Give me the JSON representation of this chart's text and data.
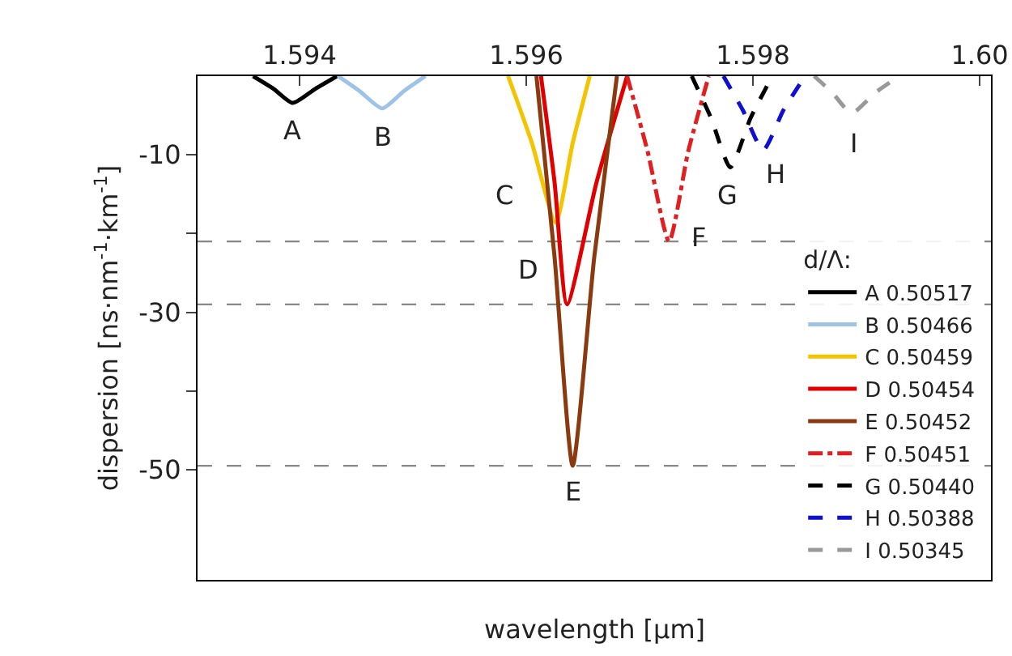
{
  "chart_data": {
    "type": "line",
    "xlabel": "wavelength [µm]",
    "ylabel": "dispersion [ns·nm$^{-1}$·km$^{-1}$]",
    "legend_title": "d/Λ:",
    "xlim": [
      1.5931,
      1.6001
    ],
    "ylim": [
      -64,
      0
    ],
    "xticks": [
      1.594,
      1.596,
      1.598,
      {
        "value": 1.6,
        "label": "1.60"
      }
    ],
    "yticks": [
      -10,
      {
        "value": -20,
        "label": null
      },
      -30,
      {
        "value": -40,
        "label": null
      },
      -50
    ],
    "grid": false,
    "legend": "bottom right",
    "marker": "none",
    "series": [
      {
        "name": "A 0.50517",
        "color": "#000000",
        "line_style": "solid",
        "x": [
          1.59359,
          1.59377,
          1.59394,
          1.59414,
          1.59433
        ],
        "values": [
          0,
          -1.6,
          -3.4,
          -1.6,
          0
        ]
      },
      {
        "name": "B 0.50466",
        "color": "#9dc3e6",
        "line_style": "solid",
        "x": [
          1.59434,
          1.59453,
          1.59473,
          1.59492,
          1.59511
        ],
        "values": [
          0,
          -1.9,
          -4.1,
          -1.9,
          0
        ]
      },
      {
        "name": "C 0.50459",
        "color": "#f5c400",
        "line_style": "solid",
        "x": [
          1.59584,
          1.59605,
          1.59626,
          1.59641,
          1.59656
        ],
        "values": [
          0,
          -8.5,
          -18.6,
          -8.5,
          0
        ]
      },
      {
        "name": "D 0.50454",
        "color": "#e00000",
        "line_style": "solid",
        "x": [
          1.59613,
          1.59625,
          1.59636,
          1.59662,
          1.59689
        ],
        "values": [
          0,
          -13.5,
          -29,
          -13.5,
          0
        ]
      },
      {
        "name": "E 0.50452",
        "color": "#8b3a10",
        "line_style": "solid",
        "x": [
          1.59609,
          1.59625,
          1.59641,
          1.5966,
          1.5968
        ],
        "values": [
          0,
          -23,
          -49.5,
          -23,
          0
        ]
      },
      {
        "name": "F 0.50451",
        "color": "#e02020",
        "line_style": "dashdot",
        "x": [
          1.59689,
          1.59707,
          1.59726,
          1.59743,
          1.59761
        ],
        "values": [
          0,
          -9.5,
          -21,
          -9.5,
          0
        ]
      },
      {
        "name": "G 0.50440",
        "color": "#000000",
        "line_style": "dashed",
        "x": [
          1.59746,
          1.59763,
          1.5978,
          1.59798,
          1.59817
        ],
        "values": [
          0,
          -5.3,
          -11.6,
          -5.3,
          0
        ]
      },
      {
        "name": "H 0.50388",
        "color": "#1010d0",
        "line_style": "dashed",
        "x": [
          1.59774,
          1.59791,
          1.59809,
          1.59827,
          1.59846
        ],
        "values": [
          0,
          -4.3,
          -9.4,
          -4.3,
          0
        ]
      },
      {
        "name": "I 0.50345",
        "color": "#999999",
        "line_style": "dashed",
        "x": [
          1.59854,
          1.5987,
          1.59887,
          1.59908,
          1.59929
        ],
        "values": [
          0,
          -2.1,
          -4.7,
          -2.1,
          0
        ]
      }
    ],
    "ref_lines": [
      {
        "axis": "y",
        "value": -21,
        "color": "#888888",
        "line_style": "dashed"
      },
      {
        "axis": "y",
        "value": -29,
        "color": "#888888",
        "line_style": "dashed"
      },
      {
        "axis": "y",
        "value": -49.5,
        "color": "#888888",
        "line_style": "dashed"
      }
    ],
    "annotations": [
      {
        "text": "A",
        "x": 1.59394,
        "y": -3.4
      },
      {
        "text": "B",
        "x": 1.59473,
        "y": -4.1
      },
      {
        "text": "C",
        "x": 1.59626,
        "y": -18.6
      },
      {
        "text": "D",
        "x": 1.59636,
        "y": -29
      },
      {
        "text": "E",
        "x": 1.59641,
        "y": -49.5
      },
      {
        "text": "F",
        "x": 1.59726,
        "y": -21
      },
      {
        "text": "G",
        "x": 1.5978,
        "y": -11.6
      },
      {
        "text": "H",
        "x": 1.59809,
        "y": -9.4
      },
      {
        "text": "I",
        "x": 1.59887,
        "y": -4.7
      }
    ]
  }
}
